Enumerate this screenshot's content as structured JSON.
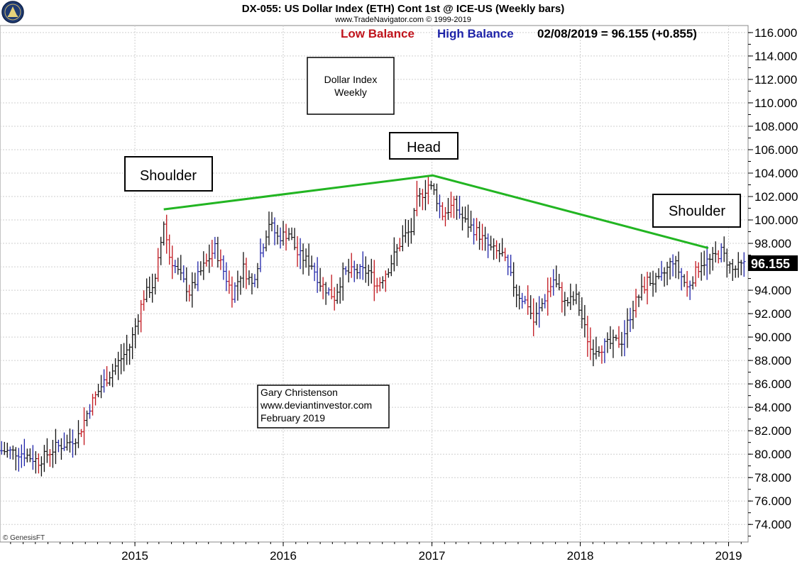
{
  "header": {
    "title": "DX-055:  US Dollar Index (ETH) Cont 1st @ ICE-US  (Weekly bars)",
    "source": "www.TradeNavigator.com © 1999-2019",
    "legend_low": "Low Balance",
    "legend_high": "High Balance",
    "last_reading": "02/08/2019 = 96.155 (+0.855)"
  },
  "price_tag": "96.155",
  "copyright": "© GenesisFT",
  "annotations": {
    "box_title_line1": "Dollar Index",
    "box_title_line2": "Weekly",
    "left_shoulder": "Shoulder",
    "head": "Head",
    "right_shoulder": "Shoulder",
    "author_line1": "Gary Christenson",
    "author_line2": "www.deviantinvestor.com",
    "author_line3": "February 2019"
  },
  "colors": {
    "low_balance": "#c0141c",
    "high_balance": "#1e23a8",
    "trend_line": "#22b522",
    "bar_up": "#1e23a8",
    "bar_down": "#c0141c",
    "bar_neutral": "#111111"
  },
  "chart_data": {
    "type": "ohlc",
    "xlabel": "",
    "ylabel": "",
    "ylim": [
      72.5,
      116.6
    ],
    "y_ticks": [
      "116.000",
      "114.000",
      "112.000",
      "110.000",
      "108.000",
      "106.000",
      "104.000",
      "102.000",
      "100.000",
      "98.000",
      "96.000",
      "94.000",
      "92.000",
      "90.000",
      "88.000",
      "86.000",
      "84.000",
      "82.000",
      "80.000",
      "78.000",
      "76.000",
      "74.000"
    ],
    "x_ticks": [
      "2015",
      "2016",
      "2017",
      "2018",
      "2019"
    ],
    "x_tick_dates": [
      "2015-01-01",
      "2016-01-01",
      "2017-01-01",
      "2018-01-01",
      "2019-01-01"
    ],
    "x_range": [
      "2014-02-03",
      "2019-02-18"
    ],
    "grid": true,
    "trend_line": [
      {
        "date": "2015-03-13",
        "value": 100.9
      },
      {
        "date": "2017-01-03",
        "value": 103.8
      },
      {
        "date": "2018-11-12",
        "value": 97.6
      }
    ],
    "close_path": [
      {
        "date": "2014-02-07",
        "value": 80.3
      },
      {
        "date": "2014-03-28",
        "value": 80.1
      },
      {
        "date": "2014-05-09",
        "value": 79.4
      },
      {
        "date": "2014-06-20",
        "value": 80.6
      },
      {
        "date": "2014-07-18",
        "value": 80.9
      },
      {
        "date": "2014-08-15",
        "value": 81.6
      },
      {
        "date": "2014-09-12",
        "value": 84.1
      },
      {
        "date": "2014-10-10",
        "value": 85.8
      },
      {
        "date": "2014-11-14",
        "value": 87.5
      },
      {
        "date": "2014-12-19",
        "value": 89.2
      },
      {
        "date": "2015-01-23",
        "value": 93.5
      },
      {
        "date": "2015-02-20",
        "value": 94.7
      },
      {
        "date": "2015-03-13",
        "value": 99.8
      },
      {
        "date": "2015-03-27",
        "value": 96.9
      },
      {
        "date": "2015-04-24",
        "value": 95.1
      },
      {
        "date": "2015-05-15",
        "value": 93.8
      },
      {
        "date": "2015-06-12",
        "value": 95.6
      },
      {
        "date": "2015-07-17",
        "value": 97.6
      },
      {
        "date": "2015-08-28",
        "value": 93.7
      },
      {
        "date": "2015-09-25",
        "value": 95.9
      },
      {
        "date": "2015-10-16",
        "value": 94.5
      },
      {
        "date": "2015-11-27",
        "value": 99.8
      },
      {
        "date": "2015-12-18",
        "value": 98.5
      },
      {
        "date": "2016-01-15",
        "value": 98.9
      },
      {
        "date": "2016-02-05",
        "value": 97.1
      },
      {
        "date": "2016-03-11",
        "value": 96.2
      },
      {
        "date": "2016-04-01",
        "value": 94.6
      },
      {
        "date": "2016-05-06",
        "value": 93.4
      },
      {
        "date": "2016-05-27",
        "value": 95.4
      },
      {
        "date": "2016-06-24",
        "value": 95.6
      },
      {
        "date": "2016-07-29",
        "value": 95.6
      },
      {
        "date": "2016-08-19",
        "value": 94.4
      },
      {
        "date": "2016-09-16",
        "value": 95.9
      },
      {
        "date": "2016-10-21",
        "value": 98.5
      },
      {
        "date": "2016-11-11",
        "value": 99.1
      },
      {
        "date": "2016-11-25",
        "value": 101.6
      },
      {
        "date": "2016-12-23",
        "value": 103.0
      },
      {
        "date": "2017-01-06",
        "value": 102.4
      },
      {
        "date": "2017-01-27",
        "value": 100.5
      },
      {
        "date": "2017-02-24",
        "value": 101.3
      },
      {
        "date": "2017-03-24",
        "value": 99.8
      },
      {
        "date": "2017-04-21",
        "value": 99.0
      },
      {
        "date": "2017-05-26",
        "value": 97.5
      },
      {
        "date": "2017-06-23",
        "value": 97.0
      },
      {
        "date": "2017-07-28",
        "value": 93.8
      },
      {
        "date": "2017-08-25",
        "value": 92.8
      },
      {
        "date": "2017-09-08",
        "value": 91.3
      },
      {
        "date": "2017-10-27",
        "value": 94.9
      },
      {
        "date": "2017-11-24",
        "value": 92.9
      },
      {
        "date": "2017-12-22",
        "value": 93.3
      },
      {
        "date": "2018-01-26",
        "value": 89.0
      },
      {
        "date": "2018-02-16",
        "value": 89.1
      },
      {
        "date": "2018-03-23",
        "value": 89.5
      },
      {
        "date": "2018-04-13",
        "value": 89.7
      },
      {
        "date": "2018-05-11",
        "value": 92.6
      },
      {
        "date": "2018-06-15",
        "value": 94.8
      },
      {
        "date": "2018-07-13",
        "value": 94.7
      },
      {
        "date": "2018-08-17",
        "value": 96.6
      },
      {
        "date": "2018-09-21",
        "value": 94.2
      },
      {
        "date": "2018-10-26",
        "value": 96.4
      },
      {
        "date": "2018-11-16",
        "value": 96.5
      },
      {
        "date": "2018-12-14",
        "value": 97.3
      },
      {
        "date": "2019-01-11",
        "value": 95.7
      },
      {
        "date": "2019-02-08",
        "value": 96.155
      }
    ]
  }
}
